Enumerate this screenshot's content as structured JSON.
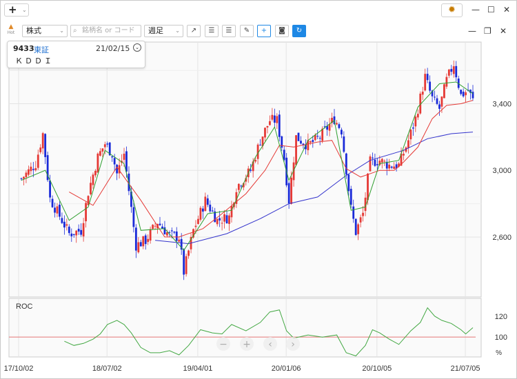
{
  "window": {
    "add_label": "+",
    "add_dropdown": "⌄",
    "gear": "✹",
    "minimize": "—",
    "maximize": "☐",
    "close": "✕"
  },
  "toolbar": {
    "hot_label": "Hot",
    "market_select": "株式",
    "search_placeholder": "銘柄名 or コード",
    "period_select": "週足",
    "pane_minimize": "—",
    "pane_restore": "❐",
    "pane_close": "✕"
  },
  "info": {
    "code": "9433",
    "exchange": "東証",
    "date": "21/02/15",
    "name": "ＫＤＤＩ"
  },
  "colors": {
    "up": "#e53935",
    "down": "#1a2ad8",
    "ma_short": "#2e9e2e",
    "ma_mid": "#e53935",
    "ma_long": "#3333cc",
    "roc": "#43a843",
    "ref_line": "#e57373",
    "grid": "#e4e4e4",
    "accent": "#1e88e5"
  },
  "chart_data": {
    "type": "candlestick",
    "y_ticks": [
      "2,600",
      "3,000",
      "3,400"
    ],
    "y_tick_values": [
      2600,
      3000,
      3400
    ],
    "ylim": [
      2240,
      3770
    ],
    "x_ticks": [
      "17/10/02",
      "18/07/02",
      "19/04/01",
      "20/01/06",
      "20/10/05",
      "21/07/05"
    ],
    "close_path": [
      [
        0,
        2950
      ],
      [
        6,
        3040
      ],
      [
        9,
        3220
      ],
      [
        12,
        2830
      ],
      [
        17,
        2700
      ],
      [
        20,
        2620
      ],
      [
        25,
        2640
      ],
      [
        28,
        2870
      ],
      [
        32,
        3080
      ],
      [
        35,
        3160
      ],
      [
        38,
        3100
      ],
      [
        40,
        2980
      ],
      [
        43,
        3100
      ],
      [
        45,
        2880
      ],
      [
        48,
        2550
      ],
      [
        52,
        2580
      ],
      [
        57,
        2690
      ],
      [
        62,
        2610
      ],
      [
        66,
        2600
      ],
      [
        68,
        2390
      ],
      [
        72,
        2640
      ],
      [
        77,
        2820
      ],
      [
        82,
        2700
      ],
      [
        87,
        2720
      ],
      [
        90,
        2900
      ],
      [
        96,
        3000
      ],
      [
        100,
        3180
      ],
      [
        104,
        3300
      ],
      [
        107,
        3300
      ],
      [
        110,
        3070
      ],
      [
        112,
        2820
      ],
      [
        115,
        3200
      ],
      [
        120,
        3150
      ],
      [
        125,
        3200
      ],
      [
        131,
        3310
      ],
      [
        134,
        3240
      ],
      [
        138,
        2770
      ],
      [
        140,
        2630
      ],
      [
        143,
        2740
      ],
      [
        146,
        3050
      ],
      [
        150,
        3060
      ],
      [
        154,
        3030
      ],
      [
        158,
        3030
      ],
      [
        162,
        3180
      ],
      [
        165,
        3310
      ],
      [
        169,
        3560
      ],
      [
        172,
        3430
      ],
      [
        175,
        3370
      ],
      [
        178,
        3540
      ],
      [
        181,
        3640
      ],
      [
        184,
        3450
      ],
      [
        187,
        3480
      ],
      [
        189,
        3420
      ]
    ],
    "ma_short_path": [
      [
        0,
        2940
      ],
      [
        10,
        3000
      ],
      [
        20,
        2700
      ],
      [
        28,
        2780
      ],
      [
        35,
        3120
      ],
      [
        43,
        3040
      ],
      [
        50,
        2640
      ],
      [
        60,
        2650
      ],
      [
        68,
        2520
      ],
      [
        78,
        2740
      ],
      [
        88,
        2760
      ],
      [
        98,
        3080
      ],
      [
        106,
        3260
      ],
      [
        112,
        2940
      ],
      [
        120,
        3180
      ],
      [
        131,
        3300
      ],
      [
        138,
        2760
      ],
      [
        144,
        2780
      ],
      [
        150,
        3040
      ],
      [
        158,
        3060
      ],
      [
        166,
        3380
      ],
      [
        175,
        3520
      ],
      [
        182,
        3530
      ],
      [
        189,
        3460
      ]
    ],
    "ma_mid_path": [
      [
        20,
        2870
      ],
      [
        30,
        2790
      ],
      [
        40,
        3020
      ],
      [
        50,
        2820
      ],
      [
        60,
        2600
      ],
      [
        66,
        2600
      ],
      [
        76,
        2650
      ],
      [
        84,
        2740
      ],
      [
        94,
        2860
      ],
      [
        102,
        3000
      ],
      [
        108,
        3150
      ],
      [
        114,
        3140
      ],
      [
        124,
        3170
      ],
      [
        130,
        3180
      ],
      [
        136,
        3010
      ],
      [
        142,
        2960
      ],
      [
        150,
        3000
      ],
      [
        156,
        3000
      ],
      [
        160,
        3050
      ],
      [
        166,
        3140
      ],
      [
        172,
        3310
      ],
      [
        178,
        3390
      ],
      [
        184,
        3400
      ],
      [
        189,
        3420
      ]
    ],
    "ma_long_path": [
      [
        56,
        2580
      ],
      [
        70,
        2560
      ],
      [
        86,
        2620
      ],
      [
        100,
        2710
      ],
      [
        112,
        2800
      ],
      [
        124,
        2840
      ],
      [
        136,
        2970
      ],
      [
        146,
        3060
      ],
      [
        160,
        3120
      ],
      [
        170,
        3190
      ],
      [
        180,
        3220
      ],
      [
        189,
        3230
      ]
    ],
    "roc": {
      "label": "ROC",
      "y_ticks": [
        "100",
        "120"
      ],
      "y_tick_values": [
        100,
        120
      ],
      "unit": "%",
      "ylim": [
        81,
        137
      ],
      "reference": 100,
      "path": [
        [
          18,
          96
        ],
        [
          22,
          92
        ],
        [
          26,
          94
        ],
        [
          30,
          98
        ],
        [
          33,
          103
        ],
        [
          36,
          112
        ],
        [
          40,
          116
        ],
        [
          43,
          112
        ],
        [
          46,
          104
        ],
        [
          50,
          90
        ],
        [
          54,
          85
        ],
        [
          58,
          85
        ],
        [
          62,
          87
        ],
        [
          66,
          83
        ],
        [
          70,
          92
        ],
        [
          75,
          107
        ],
        [
          80,
          104
        ],
        [
          84,
          103
        ],
        [
          88,
          112
        ],
        [
          94,
          106
        ],
        [
          100,
          114
        ],
        [
          104,
          124
        ],
        [
          108,
          126
        ],
        [
          111,
          106
        ],
        [
          114,
          99
        ],
        [
          120,
          102
        ],
        [
          126,
          100
        ],
        [
          132,
          102
        ],
        [
          136,
          85
        ],
        [
          140,
          82
        ],
        [
          144,
          92
        ],
        [
          147,
          107
        ],
        [
          150,
          104
        ],
        [
          154,
          98
        ],
        [
          158,
          93
        ],
        [
          163,
          106
        ],
        [
          167,
          114
        ],
        [
          170,
          128
        ],
        [
          173,
          120
        ],
        [
          176,
          116
        ],
        [
          180,
          113
        ],
        [
          184,
          107
        ],
        [
          186,
          103
        ],
        [
          189,
          109
        ]
      ]
    }
  }
}
